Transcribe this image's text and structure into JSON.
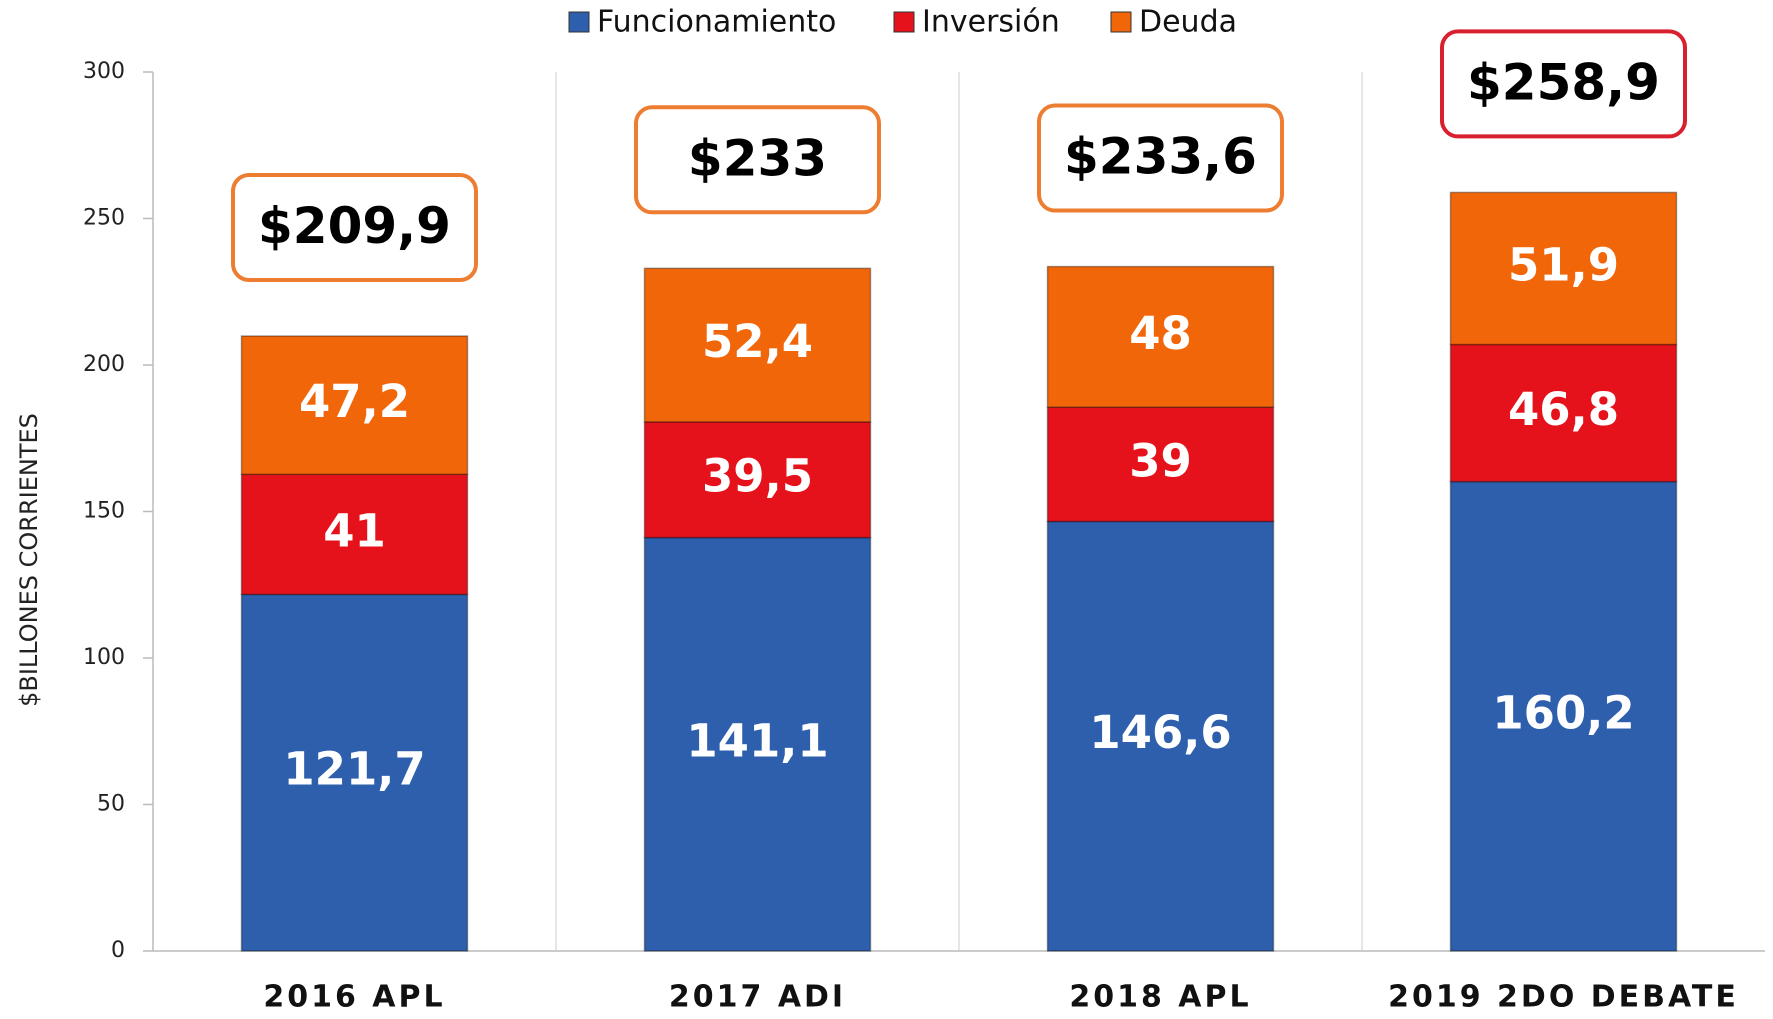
{
  "chart_data": {
    "type": "stacked_bar",
    "y_axis_label": "$BILLONES CORRIENTES",
    "categories": [
      "2016 APL",
      "2017 ADI",
      "2018 APL",
      "2019 2DO DEBATE"
    ],
    "series": [
      {
        "name": "Funcionamiento",
        "color": "#2e5fad",
        "values": [
          121.7,
          141.1,
          146.6,
          160.2
        ],
        "value_labels": [
          "121,7",
          "141,1",
          "146,6",
          "160,2"
        ]
      },
      {
        "name": "Inversión",
        "color": "#e5121b",
        "values": [
          41,
          39.5,
          39,
          46.8
        ],
        "value_labels": [
          "41",
          "39,5",
          "39",
          "46,8"
        ]
      },
      {
        "name": "Deuda",
        "color": "#f2660a",
        "values": [
          47.2,
          52.4,
          48,
          51.9
        ],
        "value_labels": [
          "47,2",
          "52,4",
          "48",
          "51,9"
        ]
      }
    ],
    "totals": {
      "values": [
        209.9,
        233,
        233.6,
        258.9
      ],
      "value_labels": [
        "$209,9",
        "$233",
        "$233,6",
        "$258,9"
      ],
      "colors": [
        "#ed7d31",
        "#ed7d31",
        "#ed7d31",
        "#d9202e"
      ]
    },
    "ylim": [
      0,
      300
    ],
    "yticks": [
      0,
      50,
      100,
      150,
      200,
      250,
      300
    ],
    "legend": "top"
  }
}
